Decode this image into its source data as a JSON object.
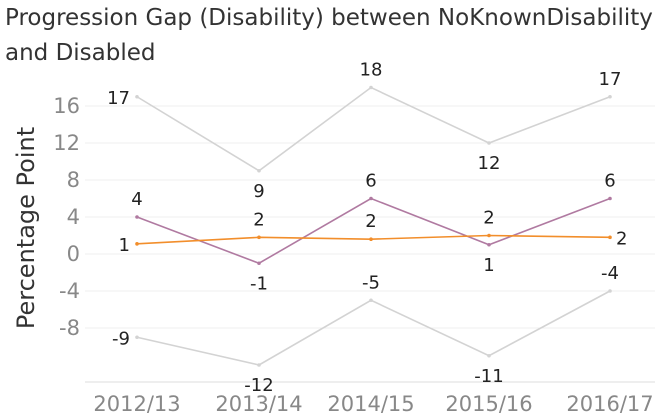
{
  "title": "Progression Gap (Disability) between NoKnownDisability and Disabled",
  "chart_data": {
    "type": "line",
    "title": "Progression Gap (Disability) between NoKnownDisability and Disabled",
    "xlabel": "",
    "ylabel": "Percentage Point",
    "categories": [
      "2012/13",
      "2013/14",
      "2014/15",
      "2015/16",
      "2016/17"
    ],
    "ylim": [
      -13,
      19
    ],
    "yticks": [
      -8,
      -4,
      0,
      4,
      8,
      12,
      16
    ],
    "grid": true,
    "series": [
      {
        "values": [
          17,
          9,
          18,
          12,
          17
        ],
        "color": "#d3d3d3"
      },
      {
        "values": [
          4,
          -1,
          6,
          1,
          6
        ],
        "color": "#b07aa1"
      },
      {
        "values": [
          1,
          2,
          2,
          2,
          2
        ],
        "values_plotted": [
          1.1,
          1.8,
          1.6,
          2.0,
          1.8
        ],
        "color": "#f28e2b"
      },
      {
        "values": [
          -9,
          -12,
          -5,
          -11,
          -4
        ],
        "color": "#d3d3d3"
      }
    ]
  }
}
